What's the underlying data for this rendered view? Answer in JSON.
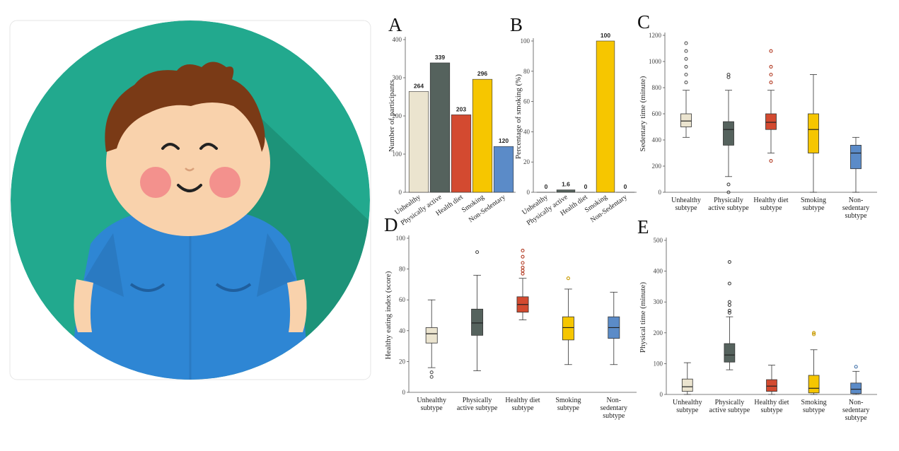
{
  "colors": {
    "unhealthy": "#ebe4cf",
    "physically_active": "#55625d",
    "healthy_diet": "#d34a30",
    "smoking": "#f6c600",
    "non_sedentary": "#5b8bc8",
    "illustration_bg": "#22a98e",
    "shirt": "#2e86d4",
    "hair": "#7a3a16",
    "skin": "#f9d2ac"
  },
  "illustration": {
    "description_icon": "boy-character-icon"
  },
  "chart_data": [
    {
      "panel": "A",
      "type": "bar",
      "categories": [
        "Unhealthy",
        "Physically active",
        "Health diet",
        "Smoking",
        "Non-Sedentary"
      ],
      "values": [
        264,
        339,
        203,
        296,
        120
      ],
      "value_labels": [
        "264",
        "339",
        "203",
        "296",
        "120"
      ],
      "ylabel": "Number of participants",
      "ylim": [
        0,
        400
      ],
      "yticks": [
        0,
        100,
        200,
        300,
        400
      ],
      "ytick_labels": [
        "0",
        "100",
        "200",
        "300",
        "400"
      ]
    },
    {
      "panel": "B",
      "type": "bar",
      "categories": [
        "Unhealthy",
        "Physically active",
        "Health diet",
        "Smoking",
        "Non-Sedentary"
      ],
      "values": [
        0,
        1.6,
        0,
        100,
        0
      ],
      "value_labels": [
        "0",
        "1.6",
        "0",
        "100",
        "0"
      ],
      "ylabel": "Percentage of smoking (%)",
      "ylim": [
        0,
        100
      ],
      "yticks": [
        0,
        20,
        40,
        60,
        80,
        100
      ],
      "ytick_labels": [
        "0",
        "20",
        "40",
        "60",
        "80",
        "100"
      ]
    },
    {
      "panel": "C",
      "type": "boxplot",
      "categories": [
        [
          "Unhealthy",
          "subtype"
        ],
        [
          "Physically",
          "active subtype"
        ],
        [
          "Healthy diet",
          "subtype"
        ],
        [
          "Smoking",
          "subtype"
        ],
        [
          "Non-",
          "sedentary",
          "subtype"
        ]
      ],
      "ylabel": "Sedentary time (minute)",
      "ylim": [
        0,
        1200
      ],
      "yticks": [
        0,
        200,
        400,
        600,
        800,
        1000,
        1200
      ],
      "ytick_labels": [
        "0",
        "200",
        "400",
        "600",
        "800",
        "1000",
        "1200"
      ],
      "boxes": [
        {
          "min": 420,
          "q1": 500,
          "median": 545,
          "q3": 600,
          "max": 780,
          "outliers": [
            840,
            900,
            960,
            1020,
            1080,
            1140
          ]
        },
        {
          "min": 120,
          "q1": 360,
          "median": 480,
          "q3": 540,
          "max": 780,
          "outliers": [
            60,
            0,
            900,
            880
          ]
        },
        {
          "min": 300,
          "q1": 480,
          "median": 535,
          "q3": 600,
          "max": 780,
          "outliers": [
            240,
            840,
            900,
            960,
            1080
          ]
        },
        {
          "min": 0,
          "q1": 300,
          "median": 480,
          "q3": 600,
          "max": 900,
          "outliers": []
        },
        {
          "min": 0,
          "q1": 180,
          "median": 300,
          "q3": 360,
          "max": 420,
          "outliers": []
        }
      ]
    },
    {
      "panel": "D",
      "type": "boxplot",
      "categories": [
        [
          "Unhealthy",
          "subtype"
        ],
        [
          "Physically",
          "active subtype"
        ],
        [
          "Healthy diet",
          "subtype"
        ],
        [
          "Smoking",
          "subtype"
        ],
        [
          "Non-",
          "sedentary",
          "subtype"
        ]
      ],
      "ylabel": "Healthy eating index (score)",
      "ylim": [
        0,
        100
      ],
      "yticks": [
        0,
        20,
        40,
        60,
        80,
        100
      ],
      "ytick_labels": [
        "0",
        "20",
        "40",
        "60",
        "80",
        "100"
      ],
      "boxes": [
        {
          "min": 16,
          "q1": 32,
          "median": 38,
          "q3": 42,
          "max": 60,
          "outliers": [
            10,
            13
          ]
        },
        {
          "min": 14,
          "q1": 37,
          "median": 45,
          "q3": 54,
          "max": 76,
          "outliers": [
            91
          ]
        },
        {
          "min": 47,
          "q1": 52,
          "median": 57,
          "q3": 62,
          "max": 74,
          "outliers": [
            77,
            79,
            81,
            84,
            88,
            92
          ]
        },
        {
          "min": 18,
          "q1": 34,
          "median": 42,
          "q3": 49,
          "max": 67,
          "outliers": [
            74
          ]
        },
        {
          "min": 18,
          "q1": 35,
          "median": 42,
          "q3": 49,
          "max": 65,
          "outliers": []
        }
      ]
    },
    {
      "panel": "E",
      "type": "boxplot",
      "categories": [
        [
          "Unhealthy",
          "subtype"
        ],
        [
          "Physically",
          "active subtype"
        ],
        [
          "Healthy diet",
          "subtype"
        ],
        [
          "Smoking",
          "subtype"
        ],
        [
          "Non-",
          "sedentary",
          "subtype"
        ]
      ],
      "ylabel": "Physical time (minute)",
      "ylim": [
        0,
        500
      ],
      "yticks": [
        0,
        100,
        200,
        300,
        400,
        500
      ],
      "ytick_labels": [
        "0",
        "100",
        "200",
        "300",
        "400",
        "500"
      ],
      "boxes": [
        {
          "min": 0,
          "q1": 10,
          "median": 25,
          "q3": 50,
          "max": 103,
          "outliers": []
        },
        {
          "min": 80,
          "q1": 105,
          "median": 128,
          "q3": 165,
          "max": 252,
          "outliers": [
            265,
            272,
            290,
            300,
            360,
            430
          ]
        },
        {
          "min": 0,
          "q1": 10,
          "median": 27,
          "q3": 48,
          "max": 95,
          "outliers": []
        },
        {
          "min": 0,
          "q1": 5,
          "median": 20,
          "q3": 62,
          "max": 145,
          "outliers": [
            195,
            200
          ]
        },
        {
          "min": 0,
          "q1": 3,
          "median": 17,
          "q3": 37,
          "max": 75,
          "outliers": [
            90
          ]
        }
      ]
    }
  ]
}
